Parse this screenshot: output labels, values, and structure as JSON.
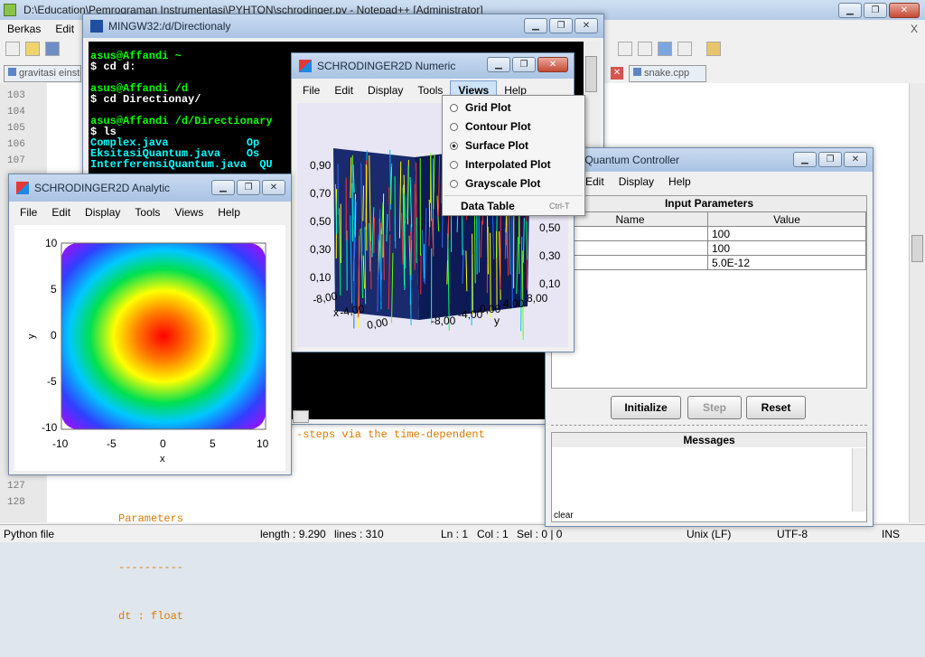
{
  "npp": {
    "title": "D:\\Education\\Pemrograman Instrumentasi\\PYHTON\\schrodinger.py - Notepad++ [Administrator]",
    "menu": [
      "Berkas",
      "Edit"
    ],
    "tabs": [
      "gravitasi einste",
      "snake.cpp"
    ],
    "line_numbers": [
      "103",
      "104",
      "105",
      "106",
      "107",
      "127",
      "128"
    ],
    "code_lines": [
      "-steps via the time-dependent",
      "Parameters",
      "----------",
      "dt : float"
    ],
    "status": {
      "filetype": "Python file",
      "length": "length : 9.290",
      "lines": "lines : 310",
      "ln": "Ln : 1",
      "col": "Col : 1",
      "sel": "Sel : 0 | 0",
      "eol": "Unix (LF)",
      "enc": "UTF-8",
      "ins": "INS"
    }
  },
  "mingw": {
    "title": "MINGW32:/d/Directionaly",
    "lines": [
      {
        "t": "asus@Affandi ~",
        "c": "#00ff00"
      },
      {
        "t": "$ cd d:",
        "c": "#ffffff"
      },
      {
        "t": "",
        "c": "#fff"
      },
      {
        "t": "asus@Affandi /d",
        "c": "#00ff00"
      },
      {
        "t": "$ cd Directionay/",
        "c": "#ffffff"
      },
      {
        "t": "",
        "c": "#fff"
      },
      {
        "t": "asus@Affandi /d/Directionary",
        "c": "#00ff00"
      },
      {
        "t": "$ ls",
        "c": "#ffffff"
      },
      {
        "t": "Complex.java            Op",
        "c": "#00ffff"
      },
      {
        "t": "EksitasiQuantum.java    Os",
        "c": "#00ffff"
      },
      {
        "t": "InterferensiQuantum.java  QU",
        "c": "#00ffff"
      }
    ]
  },
  "numeric": {
    "title": "SCHRODINGER2D Numeric",
    "menu": [
      "File",
      "Edit",
      "Display",
      "Tools",
      "Views",
      "Help"
    ],
    "z_ticks": [
      "0,90",
      "0,70",
      "0,50",
      "0,30",
      "0,10"
    ],
    "x_ticks": [
      "-8,00",
      "-4,00",
      "0,00",
      "4,00",
      "8,00"
    ],
    "y_ticks": [
      "-8,00",
      "-4,00",
      "0,00",
      "4,00",
      "8,00"
    ],
    "right_ticks": [
      "0,50",
      "0,30",
      "0,10"
    ],
    "axis_x": "x",
    "axis_y": "y",
    "views_menu": [
      {
        "label": "Grid Plot",
        "selected": false
      },
      {
        "label": "Contour Plot",
        "selected": false
      },
      {
        "label": "Surface Plot",
        "selected": true
      },
      {
        "label": "Interpolated Plot",
        "selected": false
      },
      {
        "label": "Grayscale Plot",
        "selected": false
      }
    ],
    "data_table": "Data Table",
    "data_table_shortcut": "Ctrl-T"
  },
  "controller": {
    "title": "EksitasiQuantum Controller",
    "title_visible": "asiQuantum Controller",
    "menu": [
      "Edit",
      "Display",
      "Help"
    ],
    "input_header": "Input Parameters",
    "col_name": "Name",
    "col_value": "Value",
    "rows": [
      "100",
      "100",
      "5.0E-12"
    ],
    "buttons": [
      "Initialize",
      "Step",
      "Reset"
    ],
    "messages_header": "Messages",
    "clear": "clear"
  },
  "analytic": {
    "title": "SCHRODINGER2D Analytic",
    "menu": [
      "File",
      "Edit",
      "Display",
      "Tools",
      "Views",
      "Help"
    ],
    "y_ticks": [
      "10",
      "5",
      "0",
      "-5",
      "-10"
    ],
    "x_ticks": [
      "-10",
      "-5",
      "0",
      "5",
      "10"
    ],
    "xlabel": "x",
    "ylabel": "y"
  }
}
